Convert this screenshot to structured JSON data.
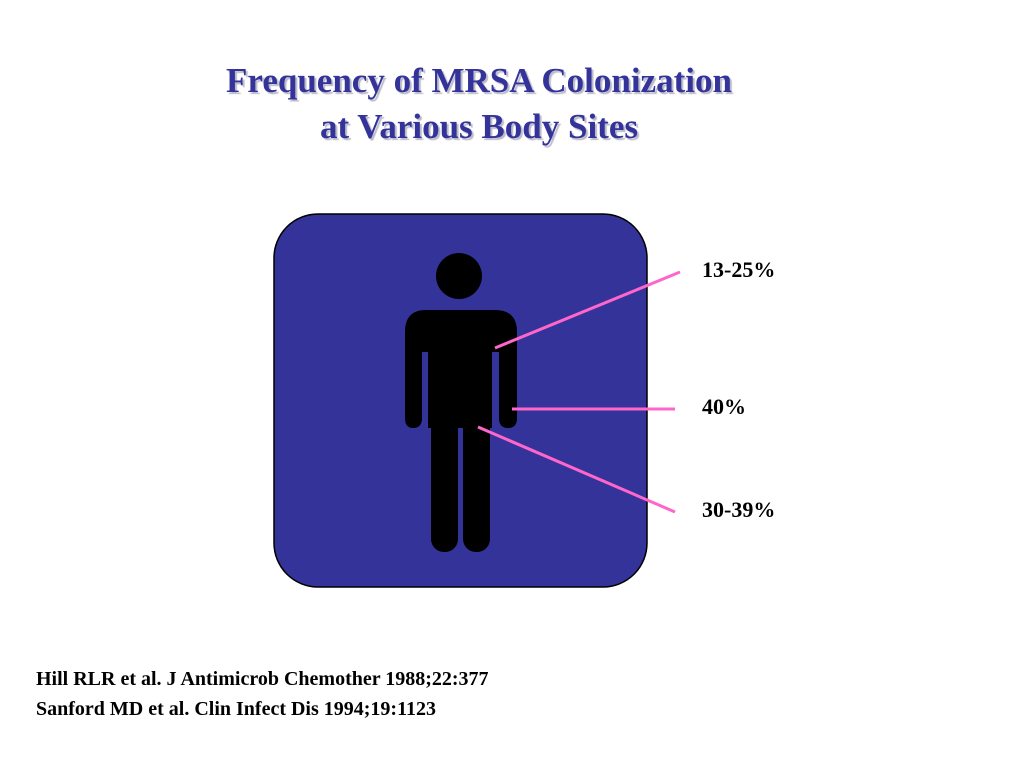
{
  "title": {
    "line1": "Frequency of MRSA Colonization",
    "line2": "at Various Body Sites"
  },
  "colors": {
    "title": "#333399",
    "panel": "#333399",
    "figure": "#000000",
    "leader": "#ff66cc"
  },
  "icons": {
    "person": "person-icon"
  },
  "sites": [
    {
      "value": "13-25%"
    },
    {
      "value": "40%"
    },
    {
      "value": "30-39%"
    }
  ],
  "references": [
    "Hill RLR et al.  J Antimicrob Chemother  1988;22:377",
    "Sanford MD et al.  Clin Infect Dis  1994;19:1123"
  ]
}
